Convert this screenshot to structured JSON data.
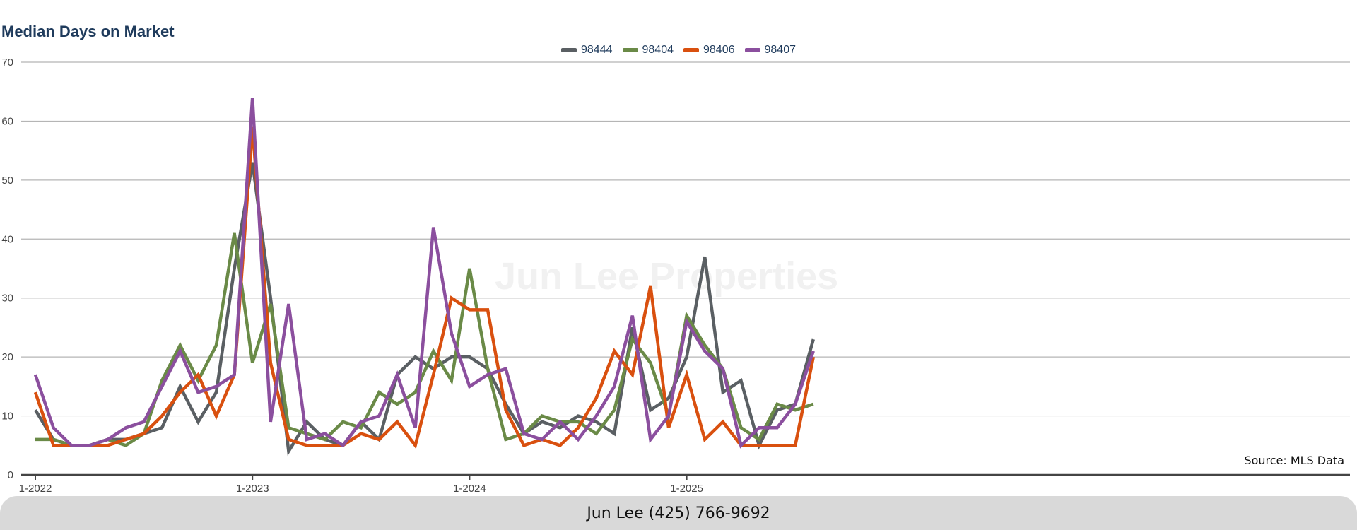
{
  "page": {
    "watermark": "Jun Lee Properties",
    "source": "Source: MLS Data",
    "footer": "Jun Lee (425) 766-9692"
  },
  "colors": {
    "98444": "#5a5f63",
    "98404": "#6a8a47",
    "98406": "#d9500f",
    "98407": "#8b4f9e"
  },
  "chart_data": {
    "type": "line",
    "title": "Median Days on Market",
    "xlabel": "",
    "ylabel": "",
    "ylim": [
      0,
      70
    ],
    "yticks": [
      0,
      10,
      20,
      30,
      40,
      50,
      60,
      70
    ],
    "x_tick_labels": [
      "1-2022",
      "1-2023",
      "1-2024",
      "1-2025"
    ],
    "x_start": "1-2022",
    "grid": true,
    "legend_position": "top-center",
    "series": [
      {
        "name": "98444",
        "color": "#5a5f63",
        "values": [
          11,
          6,
          5,
          5,
          6,
          6,
          7,
          8,
          15,
          9,
          14,
          35,
          53,
          30,
          4,
          9,
          6,
          5,
          9,
          6,
          17,
          20,
          18,
          20,
          20,
          18,
          12,
          7,
          9,
          8,
          10,
          9,
          7,
          25,
          11,
          13,
          20,
          37,
          14,
          16,
          5,
          11,
          12,
          23
        ]
      },
      {
        "name": "98404",
        "color": "#6a8a47",
        "values": [
          6,
          6,
          5,
          5,
          6,
          5,
          7,
          16,
          22,
          16,
          22,
          41,
          19,
          29,
          8,
          7,
          6,
          9,
          8,
          14,
          12,
          14,
          21,
          16,
          35,
          18,
          6,
          7,
          10,
          9,
          9,
          7,
          11,
          23,
          19,
          10,
          27,
          22,
          18,
          8,
          6,
          12,
          11,
          12
        ]
      },
      {
        "name": "98406",
        "color": "#d9500f",
        "values": [
          14,
          5,
          5,
          5,
          5,
          6,
          7,
          10,
          14,
          17,
          10,
          17,
          59,
          19,
          6,
          5,
          5,
          5,
          7,
          6,
          9,
          5,
          17,
          30,
          28,
          28,
          11,
          5,
          6,
          5,
          8,
          13,
          21,
          17,
          32,
          8,
          17,
          6,
          9,
          5,
          5,
          5,
          5,
          20
        ]
      },
      {
        "name": "98407",
        "color": "#8b4f9e",
        "values": [
          17,
          8,
          5,
          5,
          6,
          8,
          9,
          15,
          21,
          14,
          15,
          17,
          64,
          9,
          29,
          6,
          7,
          5,
          9,
          10,
          17,
          8,
          42,
          24,
          15,
          17,
          18,
          7,
          6,
          9,
          6,
          10,
          15,
          27,
          6,
          10,
          26,
          21,
          18,
          5,
          8,
          8,
          12,
          21
        ]
      }
    ]
  }
}
